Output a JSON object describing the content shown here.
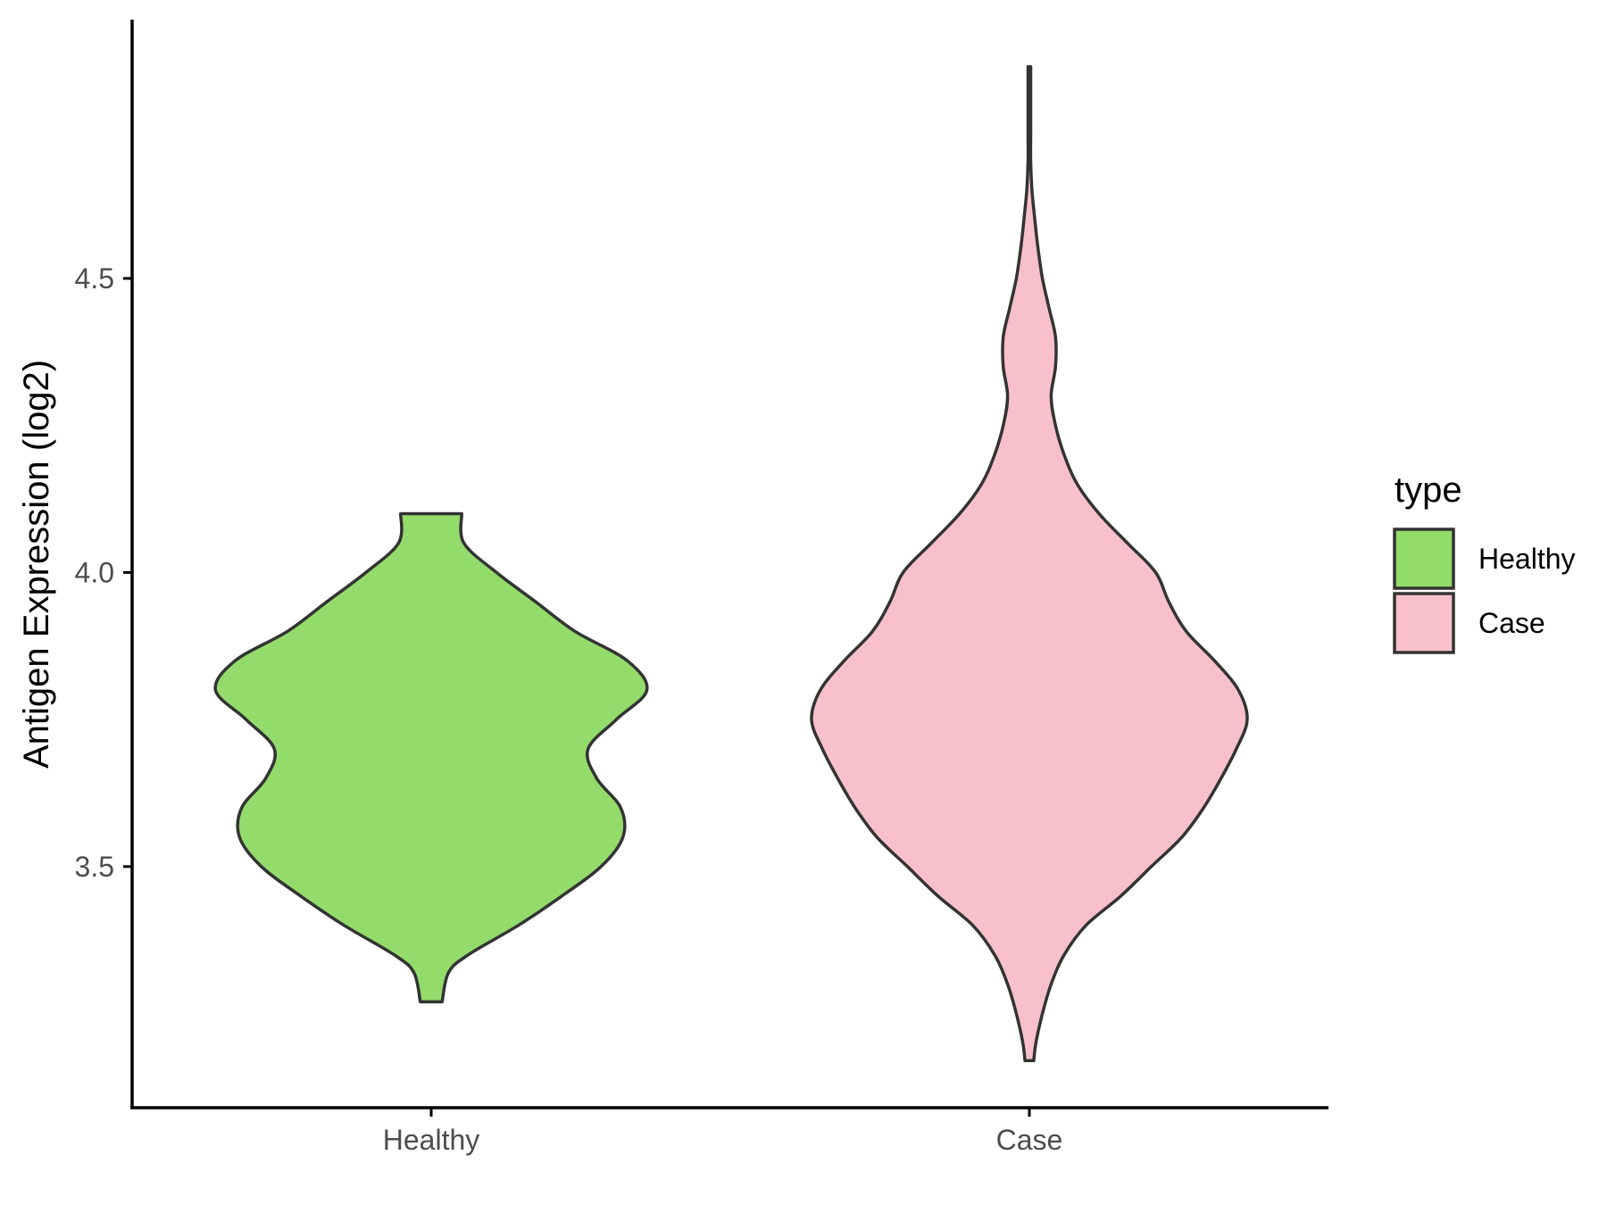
{
  "chart_data": {
    "type": "violin",
    "title": "",
    "xlabel": "",
    "ylabel": "Antigen Expression (log2)",
    "categories": [
      "Healthy",
      "Case"
    ],
    "ylim": [
      3.09,
      4.94
    ],
    "yticks": [
      3.5,
      4.0,
      4.5
    ],
    "ytick_labels": [
      "3.5",
      "4.0",
      "4.5"
    ],
    "grid": false,
    "legend": {
      "title": "type",
      "position": "right",
      "entries": [
        {
          "label": "Healthy",
          "color": "#93DC6B"
        },
        {
          "label": "Case",
          "color": "#F8C0CB"
        }
      ]
    },
    "series": [
      {
        "category": "Healthy",
        "color": "#93DC6B",
        "min": 3.27,
        "max": 4.1,
        "density_profile": [
          [
            3.27,
            0.05
          ],
          [
            3.32,
            0.08
          ],
          [
            3.35,
            0.17
          ],
          [
            3.4,
            0.4
          ],
          [
            3.45,
            0.6
          ],
          [
            3.5,
            0.78
          ],
          [
            3.55,
            0.88
          ],
          [
            3.6,
            0.87
          ],
          [
            3.65,
            0.76
          ],
          [
            3.7,
            0.72
          ],
          [
            3.75,
            0.85
          ],
          [
            3.8,
            0.99
          ],
          [
            3.85,
            0.9
          ],
          [
            3.9,
            0.66
          ],
          [
            3.95,
            0.48
          ],
          [
            4.0,
            0.3
          ],
          [
            4.05,
            0.15
          ],
          [
            4.1,
            0.14
          ]
        ]
      },
      {
        "category": "Case",
        "color": "#F8C0CB",
        "min": 3.17,
        "max": 4.86,
        "density_profile": [
          [
            3.17,
            0.02
          ],
          [
            3.2,
            0.03
          ],
          [
            3.25,
            0.06
          ],
          [
            3.3,
            0.1
          ],
          [
            3.35,
            0.16
          ],
          [
            3.4,
            0.26
          ],
          [
            3.45,
            0.42
          ],
          [
            3.5,
            0.56
          ],
          [
            3.55,
            0.7
          ],
          [
            3.6,
            0.8
          ],
          [
            3.65,
            0.88
          ],
          [
            3.7,
            0.95
          ],
          [
            3.75,
            1.0
          ],
          [
            3.8,
            0.96
          ],
          [
            3.85,
            0.85
          ],
          [
            3.9,
            0.72
          ],
          [
            3.95,
            0.64
          ],
          [
            4.0,
            0.58
          ],
          [
            4.05,
            0.45
          ],
          [
            4.1,
            0.32
          ],
          [
            4.15,
            0.22
          ],
          [
            4.2,
            0.16
          ],
          [
            4.25,
            0.12
          ],
          [
            4.3,
            0.1
          ],
          [
            4.35,
            0.12
          ],
          [
            4.4,
            0.12
          ],
          [
            4.45,
            0.09
          ],
          [
            4.5,
            0.06
          ],
          [
            4.55,
            0.04
          ],
          [
            4.6,
            0.025
          ],
          [
            4.65,
            0.012
          ],
          [
            4.7,
            0.006
          ],
          [
            4.75,
            0.006
          ],
          [
            4.8,
            0.006
          ],
          [
            4.86,
            0.006
          ]
        ]
      }
    ]
  }
}
